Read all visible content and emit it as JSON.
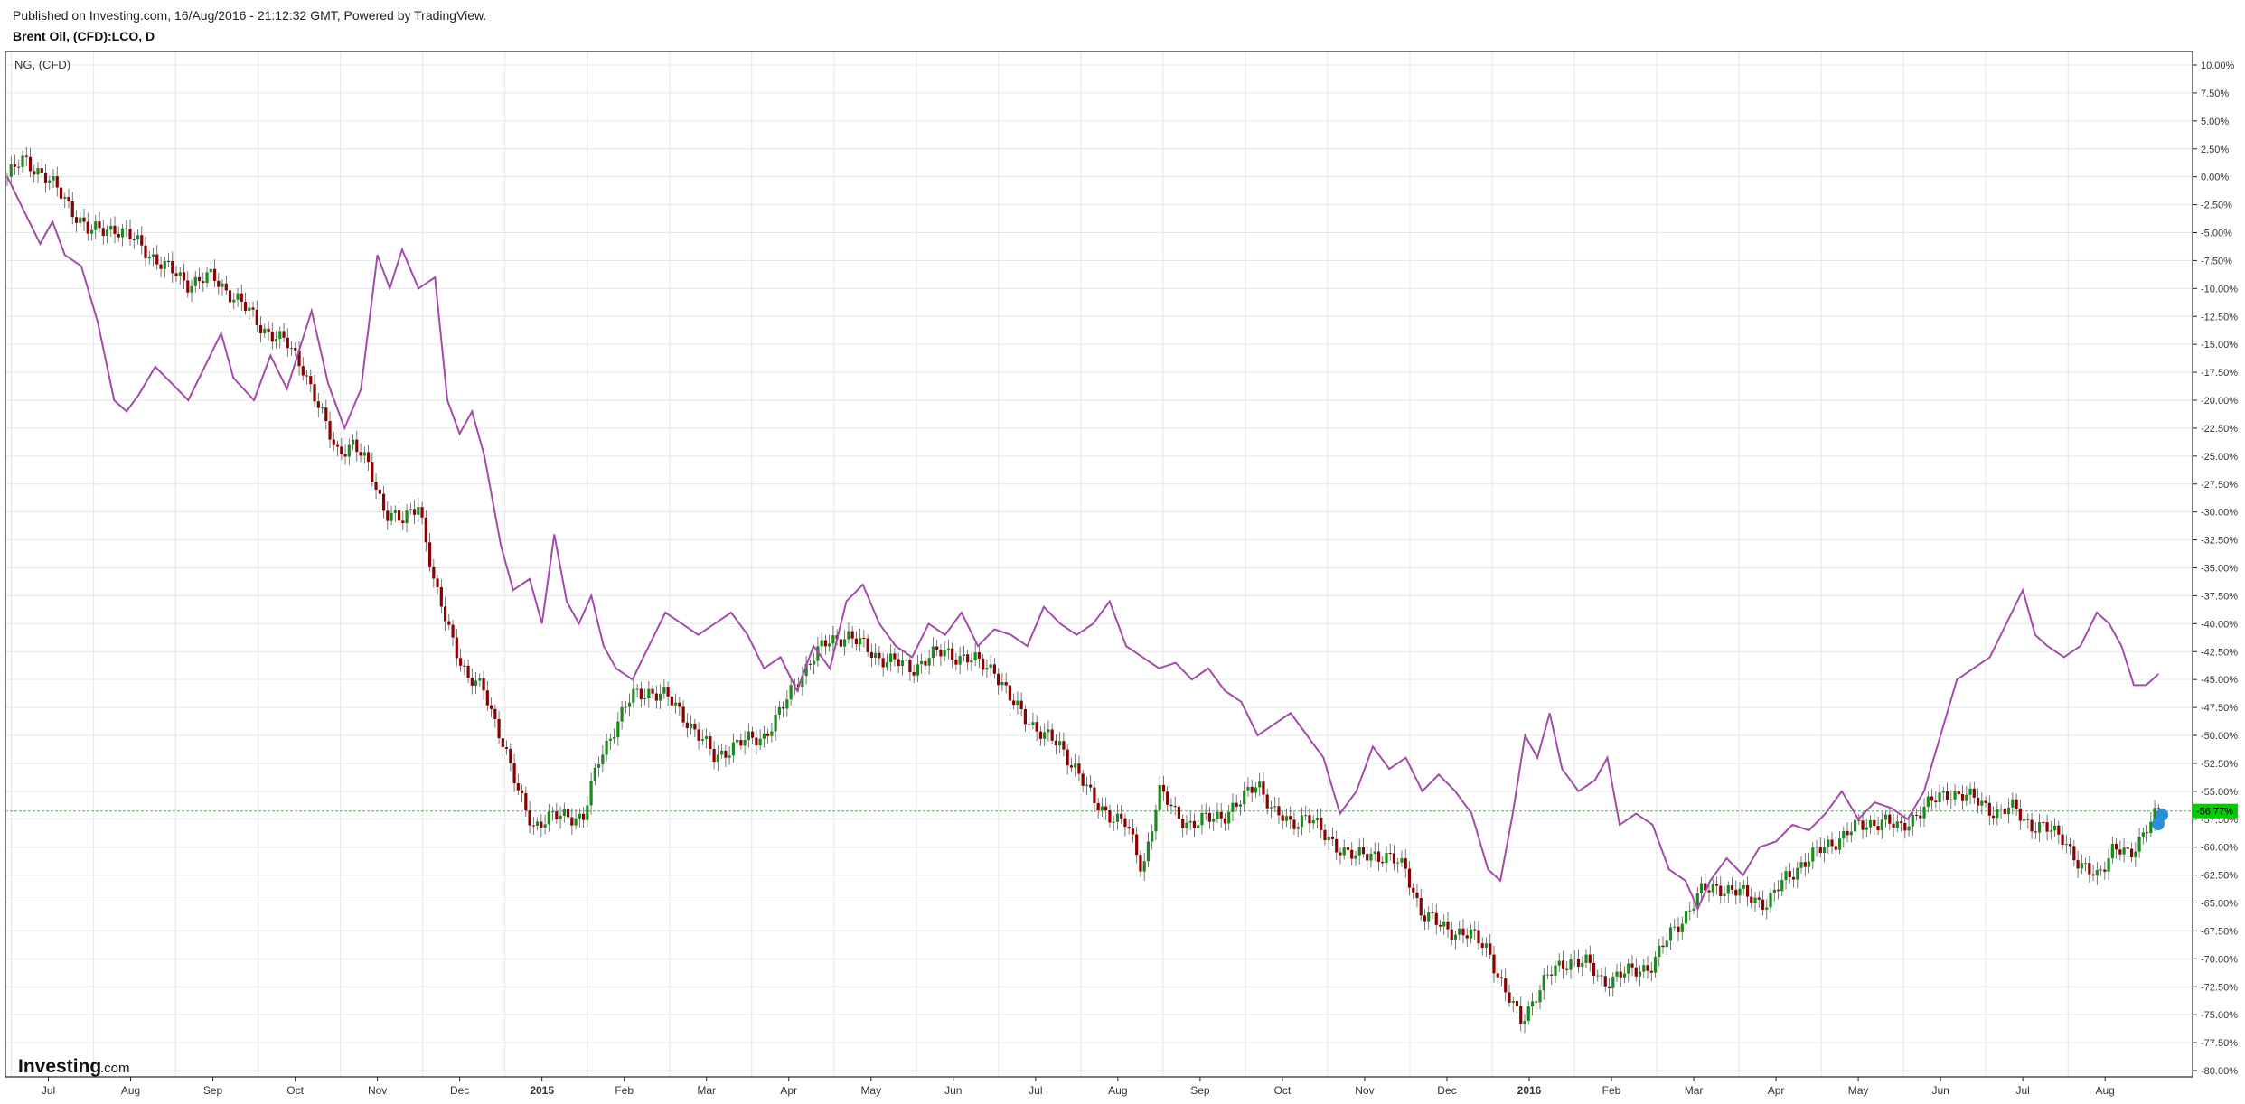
{
  "header": {
    "published": "Published on Investing.com, 16/Aug/2016 - 21:12:32 GMT, Powered by TradingView.",
    "symbol_title": "Brent Oil, (CFD):LCO, D"
  },
  "legend": {
    "compare_label": "NG,  (CFD)"
  },
  "brand": {
    "logo_main": "Investing",
    "logo_suffix": ".com"
  },
  "colors": {
    "candle_up": "#1a8a1a",
    "candle_down": "#8b0000",
    "ng_line": "#a24ca8",
    "last_price_bg": "#00cc00",
    "grid": "#e6e6e6"
  },
  "chart_data": {
    "type": "line",
    "subtype": "percent-comparison (candlestick + line)",
    "ylabel_unit": "%",
    "ylim": [
      -80,
      10
    ],
    "y_ticks": [
      "10.00%",
      "7.50%",
      "5.00%",
      "2.50%",
      "0.00%",
      "-2.50%",
      "-5.00%",
      "-7.50%",
      "-10.00%",
      "-12.50%",
      "-15.00%",
      "-17.50%",
      "-20.00%",
      "-22.50%",
      "-25.00%",
      "-27.50%",
      "-30.00%",
      "-32.50%",
      "-35.00%",
      "-37.50%",
      "-40.00%",
      "-42.50%",
      "-45.00%",
      "-47.50%",
      "-50.00%",
      "-52.50%",
      "-55.00%",
      "-57.50%",
      "-60.00%",
      "-62.50%",
      "-65.00%",
      "-67.50%",
      "-70.00%",
      "-72.50%",
      "-75.00%",
      "-77.50%",
      "-80.00%"
    ],
    "x_ticks": [
      {
        "label": "Jul",
        "t": 0.5
      },
      {
        "label": "Aug",
        "t": 1.5
      },
      {
        "label": "Sep",
        "t": 2.5
      },
      {
        "label": "Oct",
        "t": 3.5
      },
      {
        "label": "Nov",
        "t": 4.5
      },
      {
        "label": "Dec",
        "t": 5.5
      },
      {
        "label": "2015",
        "t": 6.5,
        "bold": true
      },
      {
        "label": "Feb",
        "t": 7.5
      },
      {
        "label": "Mar",
        "t": 8.5
      },
      {
        "label": "Apr",
        "t": 9.5
      },
      {
        "label": "May",
        "t": 10.5
      },
      {
        "label": "Jun",
        "t": 11.5
      },
      {
        "label": "Jul",
        "t": 12.5
      },
      {
        "label": "Aug",
        "t": 13.5
      },
      {
        "label": "Sep",
        "t": 14.5
      },
      {
        "label": "Oct",
        "t": 15.5
      },
      {
        "label": "Nov",
        "t": 16.5
      },
      {
        "label": "Dec",
        "t": 17.5
      },
      {
        "label": "2016",
        "t": 18.5,
        "bold": true
      },
      {
        "label": "Feb",
        "t": 19.5
      },
      {
        "label": "Mar",
        "t": 20.5
      },
      {
        "label": "Apr",
        "t": 21.5
      },
      {
        "label": "May",
        "t": 22.5
      },
      {
        "label": "Jun",
        "t": 23.5
      },
      {
        "label": "Jul",
        "t": 24.5
      },
      {
        "label": "Aug",
        "t": 25.5
      }
    ],
    "x_range": [
      0,
      26.3
    ],
    "last_value_label": "-56.77%",
    "last_value": -56.77,
    "series": [
      {
        "name": "NG,  (CFD)",
        "style": "line",
        "points": [
          [
            0,
            0
          ],
          [
            0.2,
            -3
          ],
          [
            0.4,
            -6
          ],
          [
            0.55,
            -4
          ],
          [
            0.7,
            -7
          ],
          [
            0.9,
            -8
          ],
          [
            1.1,
            -13
          ],
          [
            1.3,
            -20
          ],
          [
            1.45,
            -21
          ],
          [
            1.6,
            -19.5
          ],
          [
            1.8,
            -17
          ],
          [
            2.0,
            -18.5
          ],
          [
            2.2,
            -20
          ],
          [
            2.4,
            -17
          ],
          [
            2.6,
            -14
          ],
          [
            2.75,
            -18
          ],
          [
            3.0,
            -20
          ],
          [
            3.2,
            -16
          ],
          [
            3.4,
            -19
          ],
          [
            3.7,
            -12
          ],
          [
            3.9,
            -18.5
          ],
          [
            4.1,
            -22.5
          ],
          [
            4.3,
            -19
          ],
          [
            4.5,
            -7
          ],
          [
            4.65,
            -10
          ],
          [
            4.8,
            -6.5
          ],
          [
            5.0,
            -10
          ],
          [
            5.2,
            -9
          ],
          [
            5.35,
            -20
          ],
          [
            5.5,
            -23
          ],
          [
            5.65,
            -21
          ],
          [
            5.8,
            -25
          ],
          [
            6.0,
            -33
          ],
          [
            6.15,
            -37
          ],
          [
            6.35,
            -36
          ],
          [
            6.5,
            -40
          ],
          [
            6.65,
            -32
          ],
          [
            6.8,
            -38
          ],
          [
            6.95,
            -40
          ],
          [
            7.1,
            -37.5
          ],
          [
            7.25,
            -42
          ],
          [
            7.4,
            -44
          ],
          [
            7.6,
            -45
          ],
          [
            7.8,
            -42
          ],
          [
            8.0,
            -39
          ],
          [
            8.2,
            -40
          ],
          [
            8.4,
            -41
          ],
          [
            8.6,
            -40
          ],
          [
            8.8,
            -39
          ],
          [
            9.0,
            -41
          ],
          [
            9.2,
            -44
          ],
          [
            9.4,
            -43
          ],
          [
            9.6,
            -46
          ],
          [
            9.8,
            -42
          ],
          [
            10.0,
            -44
          ],
          [
            10.2,
            -38
          ],
          [
            10.4,
            -36.5
          ],
          [
            10.6,
            -40
          ],
          [
            10.8,
            -42
          ],
          [
            11.0,
            -43
          ],
          [
            11.2,
            -40
          ],
          [
            11.4,
            -41
          ],
          [
            11.6,
            -39
          ],
          [
            11.8,
            -42
          ],
          [
            12.0,
            -40.5
          ],
          [
            12.2,
            -41
          ],
          [
            12.4,
            -42
          ],
          [
            12.6,
            -38.5
          ],
          [
            12.8,
            -40
          ],
          [
            13.0,
            -41
          ],
          [
            13.2,
            -40
          ],
          [
            13.4,
            -38
          ],
          [
            13.6,
            -42
          ],
          [
            13.8,
            -43
          ],
          [
            14.0,
            -44
          ],
          [
            14.2,
            -43.5
          ],
          [
            14.4,
            -45
          ],
          [
            14.6,
            -44
          ],
          [
            14.8,
            -46
          ],
          [
            15.0,
            -47
          ],
          [
            15.2,
            -50
          ],
          [
            15.4,
            -49
          ],
          [
            15.6,
            -48
          ],
          [
            15.8,
            -50
          ],
          [
            16.0,
            -52
          ],
          [
            16.2,
            -57
          ],
          [
            16.4,
            -55
          ],
          [
            16.6,
            -51
          ],
          [
            16.8,
            -53
          ],
          [
            17.0,
            -52
          ],
          [
            17.2,
            -55
          ],
          [
            17.4,
            -53.5
          ],
          [
            17.6,
            -55
          ],
          [
            17.8,
            -57
          ],
          [
            18.0,
            -62
          ],
          [
            18.15,
            -63
          ],
          [
            18.3,
            -57
          ],
          [
            18.45,
            -50
          ],
          [
            18.6,
            -52
          ],
          [
            18.75,
            -48
          ],
          [
            18.9,
            -53
          ],
          [
            19.1,
            -55
          ],
          [
            19.3,
            -54
          ],
          [
            19.45,
            -52
          ],
          [
            19.6,
            -58
          ],
          [
            19.8,
            -57
          ],
          [
            20.0,
            -58
          ],
          [
            20.2,
            -62
          ],
          [
            20.4,
            -63
          ],
          [
            20.55,
            -65.5
          ],
          [
            20.7,
            -63
          ],
          [
            20.9,
            -61
          ],
          [
            21.1,
            -62.5
          ],
          [
            21.3,
            -60
          ],
          [
            21.5,
            -59.5
          ],
          [
            21.7,
            -58
          ],
          [
            21.9,
            -58.5
          ],
          [
            22.1,
            -57
          ],
          [
            22.3,
            -55
          ],
          [
            22.5,
            -57.5
          ],
          [
            22.7,
            -56
          ],
          [
            22.9,
            -56.5
          ],
          [
            23.1,
            -57.5
          ],
          [
            23.3,
            -55
          ],
          [
            23.5,
            -50
          ],
          [
            23.7,
            -45
          ],
          [
            23.9,
            -44
          ],
          [
            24.1,
            -43
          ],
          [
            24.3,
            -40
          ],
          [
            24.5,
            -37
          ],
          [
            24.65,
            -41
          ],
          [
            24.8,
            -42
          ],
          [
            25.0,
            -43
          ],
          [
            25.2,
            -42
          ],
          [
            25.4,
            -39
          ],
          [
            25.55,
            -40
          ],
          [
            25.7,
            -42
          ],
          [
            25.85,
            -45.5
          ],
          [
            26.0,
            -45.5
          ],
          [
            26.15,
            -44.5
          ]
        ]
      },
      {
        "name": "Brent Oil, (CFD):LCO, D",
        "style": "candlestick",
        "points": [
          [
            0,
            0
          ],
          [
            0.2,
            1.5
          ],
          [
            0.4,
            0.5
          ],
          [
            0.7,
            -2
          ],
          [
            1.0,
            -5
          ],
          [
            1.3,
            -4.5
          ],
          [
            1.6,
            -6
          ],
          [
            1.9,
            -8
          ],
          [
            2.2,
            -9.5
          ],
          [
            2.5,
            -9
          ],
          [
            2.8,
            -11
          ],
          [
            3.1,
            -13.5
          ],
          [
            3.4,
            -15
          ],
          [
            3.6,
            -17
          ],
          [
            3.8,
            -21
          ],
          [
            4.0,
            -24.5
          ],
          [
            4.2,
            -24
          ],
          [
            4.4,
            -26
          ],
          [
            4.6,
            -30
          ],
          [
            4.8,
            -31
          ],
          [
            5.0,
            -29
          ],
          [
            5.2,
            -37
          ],
          [
            5.4,
            -41
          ],
          [
            5.6,
            -45
          ],
          [
            5.8,
            -46
          ],
          [
            6.0,
            -50
          ],
          [
            6.2,
            -55
          ],
          [
            6.4,
            -58
          ],
          [
            6.6,
            -57.5
          ],
          [
            6.8,
            -57
          ],
          [
            7.0,
            -57.5
          ],
          [
            7.2,
            -52
          ],
          [
            7.4,
            -49
          ],
          [
            7.6,
            -46.5
          ],
          [
            7.8,
            -46
          ],
          [
            8.0,
            -46.5
          ],
          [
            8.2,
            -48
          ],
          [
            8.4,
            -50
          ],
          [
            8.6,
            -52
          ],
          [
            8.8,
            -51
          ],
          [
            9.0,
            -50.5
          ],
          [
            9.2,
            -50
          ],
          [
            9.4,
            -48
          ],
          [
            9.6,
            -45
          ],
          [
            9.8,
            -43
          ],
          [
            10.0,
            -41.5
          ],
          [
            10.2,
            -41
          ],
          [
            10.4,
            -42
          ],
          [
            10.6,
            -43
          ],
          [
            10.8,
            -43.5
          ],
          [
            11.0,
            -44
          ],
          [
            11.2,
            -43
          ],
          [
            11.4,
            -42.5
          ],
          [
            11.6,
            -43
          ],
          [
            11.8,
            -43.5
          ],
          [
            12.0,
            -44
          ],
          [
            12.2,
            -47
          ],
          [
            12.4,
            -48.5
          ],
          [
            12.6,
            -50
          ],
          [
            12.8,
            -51
          ],
          [
            13.0,
            -53
          ],
          [
            13.2,
            -56
          ],
          [
            13.4,
            -57
          ],
          [
            13.6,
            -58
          ],
          [
            13.8,
            -62
          ],
          [
            14.0,
            -55
          ],
          [
            14.2,
            -57
          ],
          [
            14.4,
            -58
          ],
          [
            14.6,
            -57.5
          ],
          [
            14.8,
            -57
          ],
          [
            15.0,
            -56
          ],
          [
            15.2,
            -54
          ],
          [
            15.4,
            -57
          ],
          [
            15.6,
            -58
          ],
          [
            15.8,
            -57
          ],
          [
            16.0,
            -59
          ],
          [
            16.2,
            -60
          ],
          [
            16.4,
            -61
          ],
          [
            16.6,
            -60.5
          ],
          [
            16.8,
            -61
          ],
          [
            17.0,
            -62
          ],
          [
            17.2,
            -66
          ],
          [
            17.4,
            -67
          ],
          [
            17.6,
            -67.5
          ],
          [
            17.8,
            -68
          ],
          [
            18.0,
            -69
          ],
          [
            18.2,
            -73
          ],
          [
            18.4,
            -75.5
          ],
          [
            18.6,
            -73
          ],
          [
            18.8,
            -71
          ],
          [
            19.0,
            -70
          ],
          [
            19.2,
            -70.5
          ],
          [
            19.4,
            -72
          ],
          [
            19.6,
            -71.5
          ],
          [
            19.8,
            -71
          ],
          [
            20.0,
            -70.5
          ],
          [
            20.2,
            -68
          ],
          [
            20.4,
            -66
          ],
          [
            20.6,
            -64
          ],
          [
            20.8,
            -63.5
          ],
          [
            21.0,
            -64
          ],
          [
            21.2,
            -64.5
          ],
          [
            21.4,
            -65
          ],
          [
            21.6,
            -63
          ],
          [
            21.8,
            -61.5
          ],
          [
            22.0,
            -60.5
          ],
          [
            22.2,
            -59.5
          ],
          [
            22.4,
            -58.5
          ],
          [
            22.6,
            -58
          ],
          [
            22.8,
            -57.5
          ],
          [
            23.0,
            -58.5
          ],
          [
            23.2,
            -57
          ],
          [
            23.4,
            -56
          ],
          [
            23.6,
            -55
          ],
          [
            23.8,
            -55.5
          ],
          [
            24.0,
            -56
          ],
          [
            24.2,
            -57
          ],
          [
            24.4,
            -56.5
          ],
          [
            24.6,
            -58
          ],
          [
            24.8,
            -58.5
          ],
          [
            25.0,
            -59
          ],
          [
            25.2,
            -62
          ],
          [
            25.4,
            -62.5
          ],
          [
            25.6,
            -60
          ],
          [
            25.8,
            -61
          ],
          [
            26.0,
            -58
          ],
          [
            26.15,
            -56.77
          ]
        ]
      }
    ]
  }
}
